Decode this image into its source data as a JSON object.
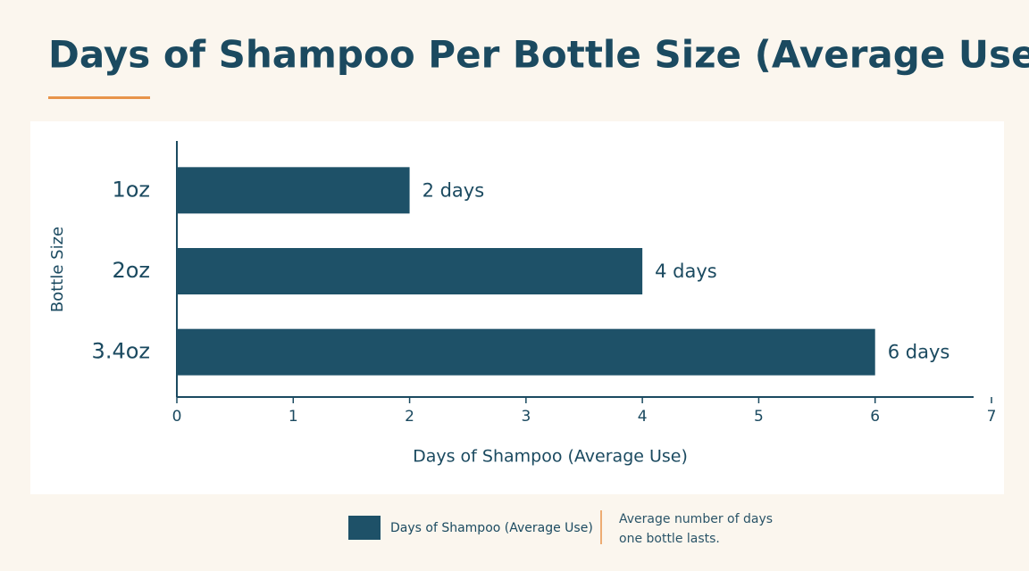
{
  "chart_data": {
    "type": "bar",
    "orientation": "horizontal",
    "title": "Days of Shampoo Per Bottle Size (Average Use)",
    "x_label": "Days of Shampoo (Average Use)",
    "y_label": "Bottle Size",
    "categories": [
      "1oz",
      "2oz",
      "3.4oz"
    ],
    "series": [
      {
        "name": "Days of Shampoo (Average Use)",
        "color": "#1e5168",
        "values": [
          2,
          4,
          6
        ],
        "value_labels": [
          "2 days",
          "4 days",
          "6 days"
        ]
      }
    ],
    "xlim": [
      0,
      7
    ],
    "xticks": [
      0,
      1,
      2,
      3,
      4,
      5,
      6,
      7
    ],
    "legend_note": "Average number of days one bottle lasts."
  }
}
